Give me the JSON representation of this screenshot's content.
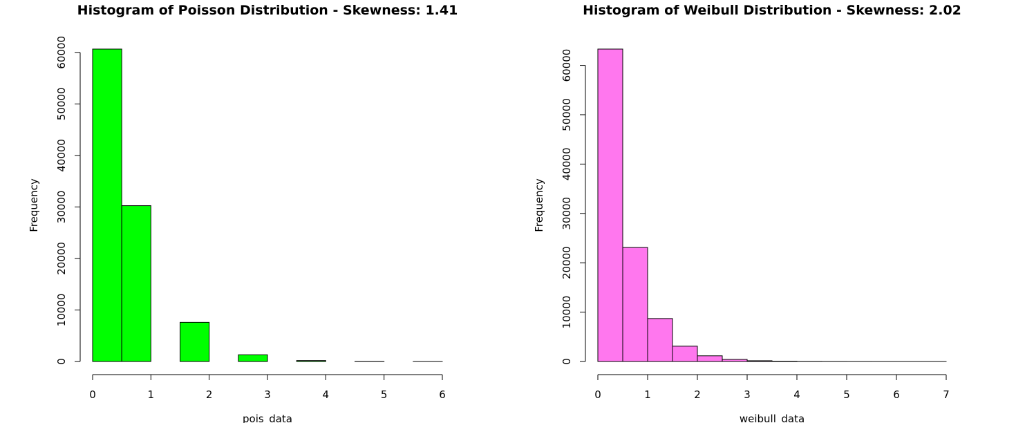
{
  "chart_data": [
    {
      "type": "bar",
      "title": "Histogram of Poisson Distribution - Skewness: 1.41",
      "xlabel": "pois_data",
      "ylabel": "Frequency",
      "bin_edges": [
        0,
        0.5,
        1,
        1.5,
        2,
        2.5,
        3,
        3.5,
        4,
        4.5,
        5,
        5.5,
        6
      ],
      "values": [
        60650,
        30250,
        0,
        7600,
        0,
        1300,
        0,
        180,
        0,
        20,
        0,
        3
      ],
      "xlim": [
        0,
        6
      ],
      "ylim": [
        0,
        60650
      ],
      "xticks": [
        0,
        1,
        2,
        3,
        4,
        5,
        6
      ],
      "yticks": [
        0,
        10000,
        20000,
        30000,
        40000,
        50000,
        60000
      ],
      "bar_color": "#00ff00",
      "grid": false,
      "legend": "none"
    },
    {
      "type": "bar",
      "title": "Histogram of Weibull Distribution - Skewness: 2.02",
      "xlabel": "weibull_data",
      "ylabel": "Frequency",
      "bin_edges": [
        0,
        0.5,
        1,
        1.5,
        2,
        2.5,
        3,
        3.5,
        4,
        4.5,
        5,
        5.5,
        6,
        6.5,
        7
      ],
      "values": [
        63300,
        23100,
        8700,
        3100,
        1150,
        420,
        150,
        60,
        20,
        8,
        4,
        2,
        1,
        1
      ],
      "xlim": [
        0,
        7
      ],
      "ylim": [
        0,
        63300
      ],
      "xticks": [
        0,
        1,
        2,
        3,
        4,
        5,
        6,
        7
      ],
      "yticks": [
        0,
        10000,
        20000,
        30000,
        40000,
        50000,
        60000
      ],
      "bar_color": "#ff77ee",
      "grid": false,
      "legend": "none"
    }
  ]
}
